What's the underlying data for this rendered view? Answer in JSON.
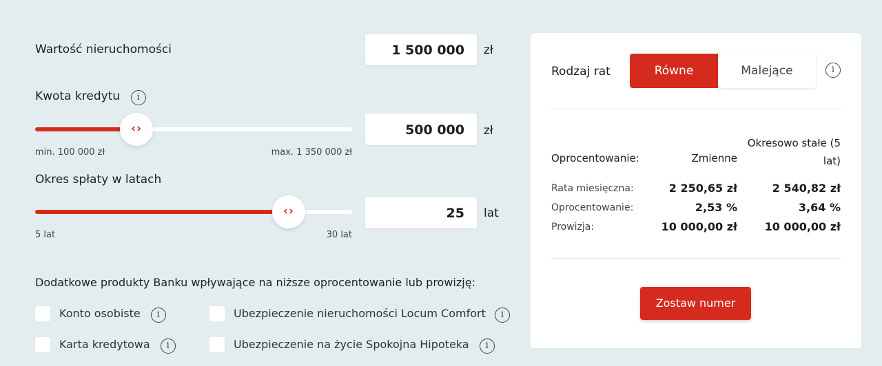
{
  "colors": {
    "accent": "#d52b1e",
    "background": "#e3ecef"
  },
  "property": {
    "label": "Wartość nieruchomości",
    "value": "1 500 000",
    "unit": "zł"
  },
  "loan": {
    "label": "Kwota kredytu",
    "value": "500 000",
    "unit": "zł",
    "min_label": "min. 100 000 zł",
    "max_label": "max. 1 350 000 zł",
    "min": 100000,
    "max": 1350000,
    "current": 500000,
    "fill_percent": 32
  },
  "period": {
    "label": "Okres spłaty w latach",
    "value": "25",
    "unit": "lat",
    "min_label": "5 lat",
    "max_label": "30 lat",
    "min": 5,
    "max": 30,
    "current": 25,
    "fill_percent": 80
  },
  "slider_thumb_glyph": "‹›",
  "info_glyph": "i",
  "extras": {
    "title": "Dodatkowe produkty Banku wpływające na niższe oprocentowanie lub prowizję:",
    "items": [
      {
        "label": "Konto osobiste",
        "checked": false
      },
      {
        "label": "Ubezpieczenie nieruchomości Locum Comfort",
        "checked": false
      },
      {
        "label": "Karta kredytowa",
        "checked": false
      },
      {
        "label": "Ubezpieczenie na życie Spokojna Hipoteka",
        "checked": false
      }
    ]
  },
  "panel": {
    "installment_label": "Rodzaj rat",
    "options": [
      "Równe",
      "Malejące"
    ],
    "selected": "Równe",
    "header": {
      "label": "Oprocentowanie:",
      "col1": "Zmienne",
      "col2_line1": "Okresowo stałe (5",
      "col2_line2": "lat)"
    },
    "rows": [
      {
        "label": "Rata miesięczna:",
        "v1": "2 250,65 zł",
        "v2": "2 540,82 zł"
      },
      {
        "label": "Oprocentowanie:",
        "v1": "2,53 %",
        "v2": "3,64 %"
      },
      {
        "label": "Prowizja:",
        "v1": "10 000,00 zł",
        "v2": "10 000,00 zł"
      }
    ],
    "cta": "Zostaw numer"
  }
}
